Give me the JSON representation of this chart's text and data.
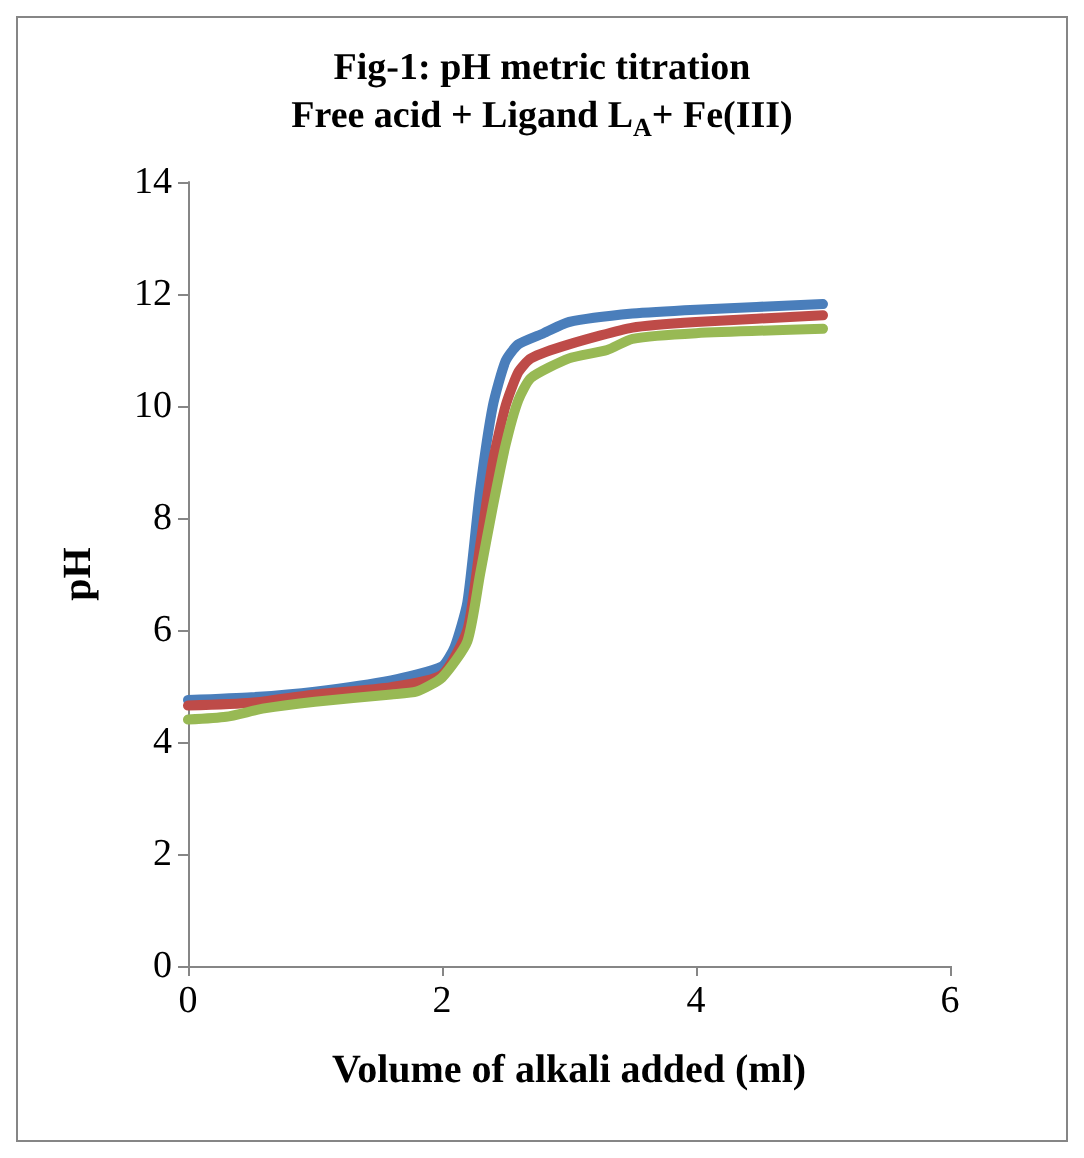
{
  "chart_data": {
    "type": "line",
    "title": "Fig-1: pH metric titration\nFree acid + Ligand L$_{A}$+ Fe(III)",
    "xlabel": "Volume of alkali added (ml)",
    "ylabel": "pH",
    "xlim": [
      0,
      6
    ],
    "xticks": [
      0,
      2,
      4,
      6
    ],
    "ylim": [
      0,
      14
    ],
    "yticks": [
      0,
      2,
      4,
      6,
      8,
      10,
      12,
      14
    ],
    "grid": false,
    "marker": "none",
    "line_style": "solid",
    "series": [
      {
        "color": "#4a7ebb",
        "x": [
          0,
          0.5,
          1.0,
          1.6,
          2.0,
          2.1,
          2.2,
          2.3,
          2.4,
          2.5,
          2.6,
          2.8,
          3.0,
          3.5,
          4.0,
          5.0
        ],
        "values": [
          4.75,
          4.8,
          4.9,
          5.1,
          5.35,
          5.7,
          6.5,
          8.5,
          10.0,
          10.8,
          11.1,
          11.3,
          11.5,
          11.65,
          11.72,
          11.82
        ]
      },
      {
        "color": "#be4b48",
        "x": [
          0,
          0.5,
          1.0,
          1.6,
          2.0,
          2.2,
          2.3,
          2.4,
          2.5,
          2.6,
          2.7,
          3.0,
          3.5,
          4.0,
          5.0
        ],
        "values": [
          4.65,
          4.7,
          4.85,
          4.98,
          5.2,
          6.0,
          7.5,
          9.0,
          10.0,
          10.6,
          10.85,
          11.1,
          11.4,
          11.5,
          11.62
        ]
      },
      {
        "color": "#98b954",
        "x": [
          0,
          0.3,
          0.6,
          1.0,
          1.6,
          1.8,
          2.0,
          2.2,
          2.3,
          2.4,
          2.5,
          2.6,
          2.7,
          3.0,
          3.3,
          3.5,
          4.0,
          5.0
        ],
        "values": [
          4.4,
          4.45,
          4.6,
          4.72,
          4.85,
          4.9,
          5.15,
          5.8,
          7.0,
          8.2,
          9.3,
          10.1,
          10.5,
          10.85,
          11.0,
          11.2,
          11.3,
          11.38
        ]
      }
    ]
  }
}
